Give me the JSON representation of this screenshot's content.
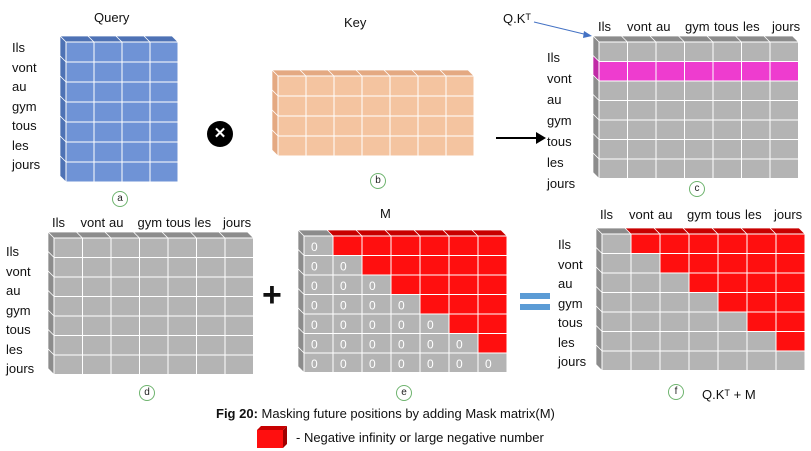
{
  "tokens": [
    "Ils",
    "vont",
    "au",
    "gym",
    "tous",
    "les",
    "jours"
  ],
  "panel_a": {
    "title": "Query",
    "marker": "a"
  },
  "panel_b": {
    "title": "Key",
    "marker": "b"
  },
  "panel_c": {
    "title": "Q.Kᵀ",
    "marker": "c",
    "highlight_row_index": 1
  },
  "panel_d": {
    "marker": "d"
  },
  "panel_e": {
    "title": "M",
    "marker": "e"
  },
  "panel_f": {
    "title": "Q.Kᵀ + M",
    "marker": "f"
  },
  "operators": {
    "multiply": "✕",
    "plus": "+",
    "equals": "=",
    "arrow": "→"
  },
  "mask_value": "0",
  "caption": {
    "label": "Fig 20:",
    "text": "Masking future positions by adding Mask matrix(M)"
  },
  "legend": {
    "text": "- Negative infinity or large negative number"
  },
  "colors": {
    "blue": "#6f93d6",
    "blue_dark": "#4e72b5",
    "peach": "#f4c4a0",
    "peach_dark": "#e4a982",
    "gray": "#b4b4b4",
    "gray_dark": "#8c8c8c",
    "magenta": "#ee3ccf",
    "red": "#ff0f0f",
    "red_dark": "#c80000"
  }
}
